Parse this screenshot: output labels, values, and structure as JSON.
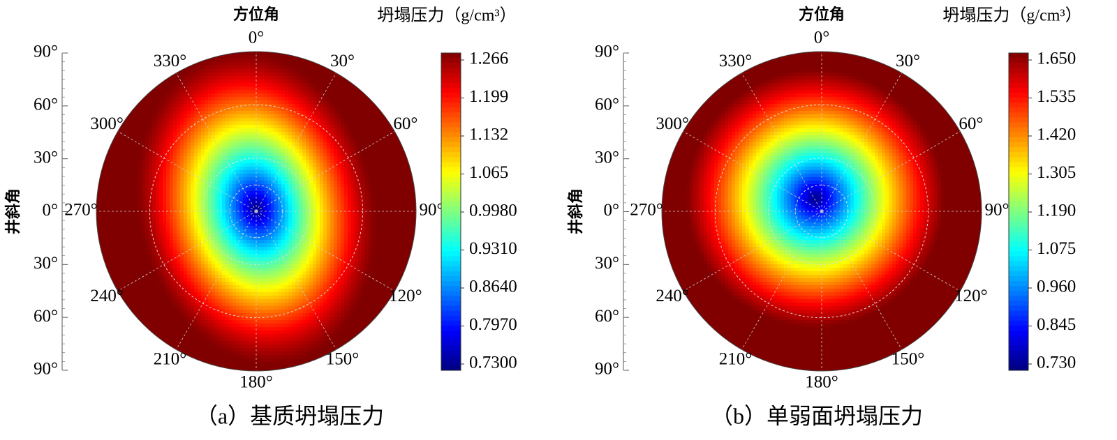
{
  "chart_data": [
    {
      "type": "heatmap",
      "caption": "（a）基质坍塌压力",
      "title": "方位角",
      "radial_label": "井斜角",
      "colorbar_label": "坍塌压力（g/cm³）",
      "angle_labels": [
        "0°",
        "30°",
        "60°",
        "90°",
        "120°",
        "150°",
        "180°",
        "210°",
        "240°",
        "270°",
        "300°",
        "330°"
      ],
      "radial_ticks": [
        "90°",
        "60°",
        "30°",
        "0°",
        "30°",
        "60°",
        "90°"
      ],
      "colorbar_ticks": [
        "1.266",
        "1.199",
        "1.132",
        "1.065",
        "0.9980",
        "0.9310",
        "0.8640",
        "0.7970",
        "0.7300"
      ],
      "vmin": 0.73,
      "vmax": 1.266,
      "min_center": [
        0.0,
        -0.02
      ],
      "ellipse_scale": [
        0.78,
        1.05
      ],
      "tilt_deg": -12
    },
    {
      "type": "heatmap",
      "caption": "（b）单弱面坍塌压力",
      "title": "方位角",
      "radial_label": "井斜角",
      "colorbar_label": "坍塌压力（g/cm³）",
      "angle_labels": [
        "0°",
        "30°",
        "60°",
        "90°",
        "120°",
        "150°",
        "180°",
        "210°",
        "240°",
        "270°",
        "300°",
        "330°"
      ],
      "radial_ticks": [
        "90°",
        "60°",
        "30°",
        "0°",
        "30°",
        "60°",
        "90°"
      ],
      "colorbar_ticks": [
        "1.650",
        "1.535",
        "1.420",
        "1.305",
        "1.190",
        "1.075",
        "0.960",
        "0.845",
        "0.730"
      ],
      "vmin": 0.73,
      "vmax": 1.65,
      "min_center": [
        -0.04,
        -0.08
      ],
      "ellipse_scale": [
        0.95,
        0.95
      ],
      "tilt_deg": 0
    }
  ]
}
